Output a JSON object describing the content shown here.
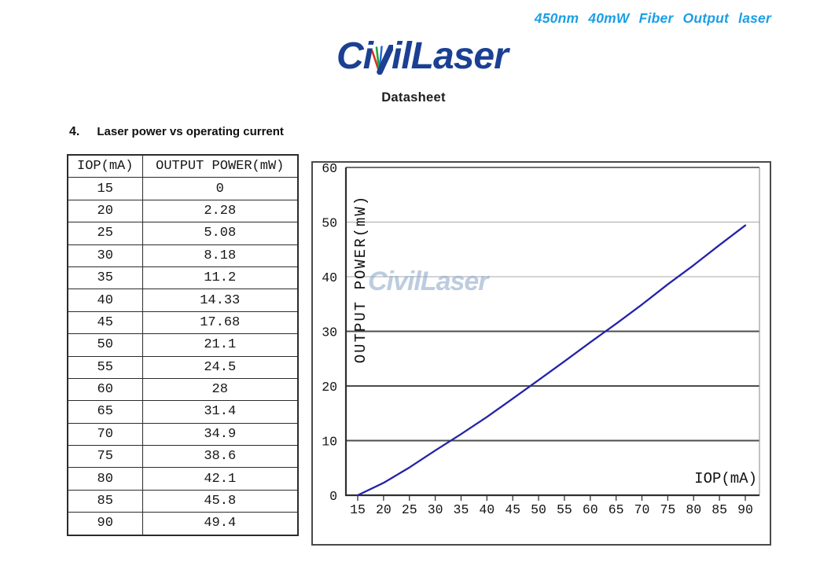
{
  "header": {
    "product_title": "450nm 40mW Fiber Output laser",
    "subtitle": "Datasheet"
  },
  "logo": {
    "full": "CivilLaser",
    "prefix": "Ci",
    "suffix": "ilLaser",
    "navy": "#1b4093",
    "ray_red": "#d93025",
    "ray_green": "#1ea83c",
    "ray_blue": "#2a6bd4"
  },
  "section": {
    "number": "4.",
    "title": "Laser power vs operating current"
  },
  "table": {
    "headers": [
      "IOP(mA)",
      "OUTPUT POWER(mW)"
    ],
    "rows": [
      [
        "15",
        "0"
      ],
      [
        "20",
        "2.28"
      ],
      [
        "25",
        "5.08"
      ],
      [
        "30",
        "8.18"
      ],
      [
        "35",
        "11.2"
      ],
      [
        "40",
        "14.33"
      ],
      [
        "45",
        "17.68"
      ],
      [
        "50",
        "21.1"
      ],
      [
        "55",
        "24.5"
      ],
      [
        "60",
        "28"
      ],
      [
        "65",
        "31.4"
      ],
      [
        "70",
        "34.9"
      ],
      [
        "75",
        "38.6"
      ],
      [
        "80",
        "42.1"
      ],
      [
        "85",
        "45.8"
      ],
      [
        "90",
        "49.4"
      ]
    ]
  },
  "chart_data": {
    "type": "line",
    "title": "",
    "xlabel": "IOP(mA)",
    "ylabel": "OUTPUT POWER(mW)",
    "x": [
      15,
      20,
      25,
      30,
      35,
      40,
      45,
      50,
      55,
      60,
      65,
      70,
      75,
      80,
      85,
      90
    ],
    "values": [
      0,
      2.28,
      5.08,
      8.18,
      11.2,
      14.33,
      17.68,
      21.1,
      24.5,
      28,
      31.4,
      34.9,
      38.6,
      42.1,
      45.8,
      49.4
    ],
    "x_ticks": [
      15,
      20,
      25,
      30,
      35,
      40,
      45,
      50,
      55,
      60,
      65,
      70,
      75,
      80,
      85,
      90
    ],
    "y_ticks": [
      0,
      10,
      20,
      30,
      40,
      50,
      60
    ],
    "xlim": [
      12,
      93
    ],
    "ylim": [
      0,
      60
    ],
    "grid": "horizontal",
    "legend": "none",
    "line_color": "#2323a8",
    "watermark": "CivilLaser",
    "watermark_color": "#96adcc"
  }
}
